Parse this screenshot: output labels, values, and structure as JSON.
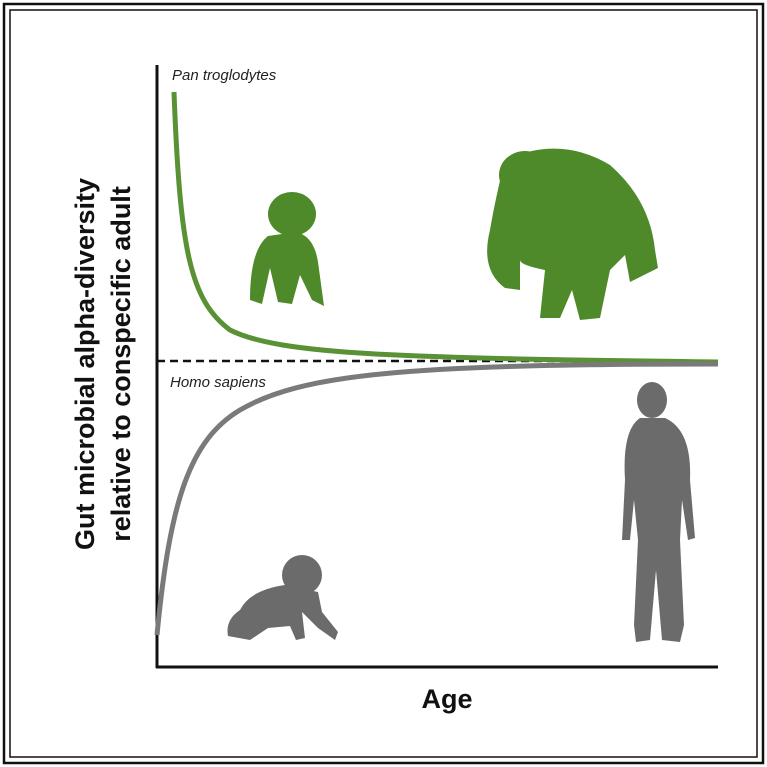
{
  "labels": {
    "species_top": "Pan troglodytes",
    "species_bottom": "Homo sapiens"
  },
  "axes": {
    "y_label_line1": "Gut microbial alpha-diversity",
    "y_label_line2": "relative to conspecific adult",
    "x_label": "Age"
  }
}
